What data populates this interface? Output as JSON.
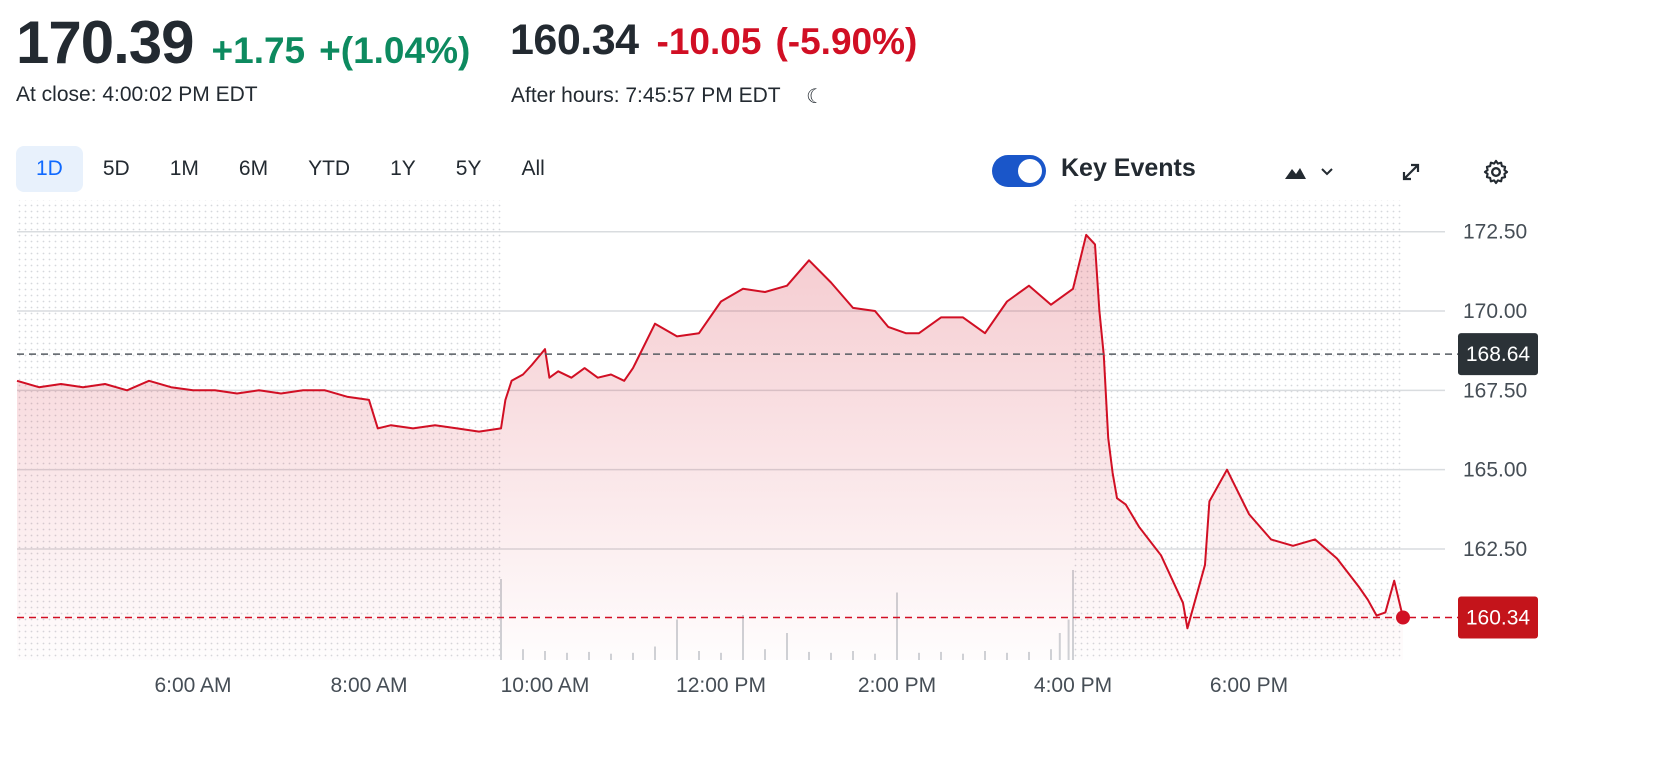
{
  "quote": {
    "close_price": "170.39",
    "close_change": "+1.75",
    "close_change_pct": "+(1.04%)",
    "close_label": "At close: 4:00:02 PM EDT",
    "after_price": "160.34",
    "after_change": "-10.05",
    "after_change_pct": "(-5.90%)",
    "after_label": "After hours: 7:45:57 PM EDT"
  },
  "toolbar": {
    "ranges": [
      "1D",
      "5D",
      "1M",
      "6M",
      "YTD",
      "1Y",
      "5Y",
      "All"
    ],
    "active_range": "1D",
    "key_events_label": "Key Events",
    "key_events_on": true
  },
  "icons": {
    "moon": "moon-icon",
    "chart_type": "mountain-chart-icon",
    "expand": "expand-icon",
    "settings": "gear-icon"
  },
  "colors": {
    "positive": "#0d8a5f",
    "negative": "#d10f24",
    "line": "#d10f24",
    "toggle": "#1a56c9",
    "prev_close_tag": "#2b3237",
    "current_tag": "#c4141b"
  },
  "chart_data": {
    "type": "area",
    "x_unit": "hours (ET)",
    "xlim": [
      4.0,
      19.75
    ],
    "ylim": [
      159.0,
      173.5
    ],
    "y_ticks": [
      172.5,
      170.0,
      167.5,
      165.0,
      162.5
    ],
    "y_tick_labels": [
      "172.50",
      "170.00",
      "167.50",
      "165.00",
      "162.50"
    ],
    "x_ticks": [
      6,
      8,
      10,
      12,
      14,
      16,
      18
    ],
    "x_tick_labels": [
      "6:00 AM",
      "8:00 AM",
      "10:00 AM",
      "12:00 PM",
      "2:00 PM",
      "4:00 PM",
      "6:00 PM"
    ],
    "regular_session": [
      9.5,
      16.0
    ],
    "previous_close": 168.64,
    "previous_close_label": "168.64",
    "current_price": 160.34,
    "current_price_label": "160.34",
    "grid": true,
    "series": [
      {
        "x": [
          4.0,
          4.25,
          4.5,
          4.75,
          5.0,
          5.25,
          5.5,
          5.75,
          6.0,
          6.25,
          6.5,
          6.75,
          7.0,
          7.25,
          7.5,
          7.75,
          8.0,
          8.1,
          8.25,
          8.5,
          8.75,
          9.0,
          9.25,
          9.5,
          9.55,
          9.62,
          9.75,
          9.85,
          10.0,
          10.05,
          10.15,
          10.3,
          10.45,
          10.6,
          10.75,
          10.9,
          11.0,
          11.25,
          11.5,
          11.75,
          12.0,
          12.25,
          12.5,
          12.75,
          13.0,
          13.25,
          13.5,
          13.75,
          13.9,
          14.1,
          14.25,
          14.5,
          14.75,
          15.0,
          15.25,
          15.5,
          15.75,
          16.0,
          16.15,
          16.25,
          16.3,
          16.35,
          16.4,
          16.45,
          16.5,
          16.6,
          16.75,
          17.0,
          17.25,
          17.3,
          17.5,
          17.55,
          17.75,
          18.0,
          18.25,
          18.5,
          18.75,
          19.0,
          19.25,
          19.35,
          19.45,
          19.55,
          19.65,
          19.75
        ],
        "y": [
          167.8,
          167.6,
          167.7,
          167.6,
          167.7,
          167.5,
          167.8,
          167.6,
          167.5,
          167.5,
          167.4,
          167.5,
          167.4,
          167.5,
          167.5,
          167.3,
          167.2,
          166.3,
          166.4,
          166.3,
          166.4,
          166.3,
          166.2,
          166.3,
          167.2,
          167.8,
          168.0,
          168.3,
          168.8,
          167.9,
          168.1,
          167.9,
          168.2,
          167.9,
          168.0,
          167.8,
          168.2,
          169.6,
          169.2,
          169.3,
          170.3,
          170.7,
          170.6,
          170.8,
          171.6,
          170.9,
          170.1,
          170.0,
          169.5,
          169.3,
          169.3,
          169.8,
          169.8,
          169.3,
          170.3,
          170.8,
          170.2,
          170.7,
          172.4,
          172.1,
          170.0,
          168.6,
          166.0,
          164.9,
          164.1,
          163.9,
          163.2,
          162.3,
          160.8,
          160.0,
          162.0,
          164.0,
          165.0,
          163.6,
          162.8,
          162.6,
          162.8,
          162.2,
          161.3,
          160.9,
          160.4,
          160.5,
          161.5,
          160.34
        ]
      }
    ],
    "volume": {
      "x": [
        9.5,
        9.75,
        10.0,
        10.25,
        10.5,
        10.75,
        11.0,
        11.25,
        11.5,
        11.75,
        12.0,
        12.25,
        12.5,
        12.75,
        13.0,
        13.25,
        13.5,
        13.75,
        14.0,
        14.25,
        14.5,
        14.75,
        15.0,
        15.25,
        15.5,
        15.75,
        15.85,
        15.95,
        16.0
      ],
      "y": [
        0.9,
        0.12,
        0.1,
        0.08,
        0.09,
        0.07,
        0.08,
        0.15,
        0.45,
        0.1,
        0.08,
        0.5,
        0.12,
        0.3,
        0.09,
        0.08,
        0.1,
        0.07,
        0.75,
        0.08,
        0.09,
        0.07,
        0.1,
        0.08,
        0.09,
        0.12,
        0.3,
        0.45,
        1.0
      ]
    }
  }
}
